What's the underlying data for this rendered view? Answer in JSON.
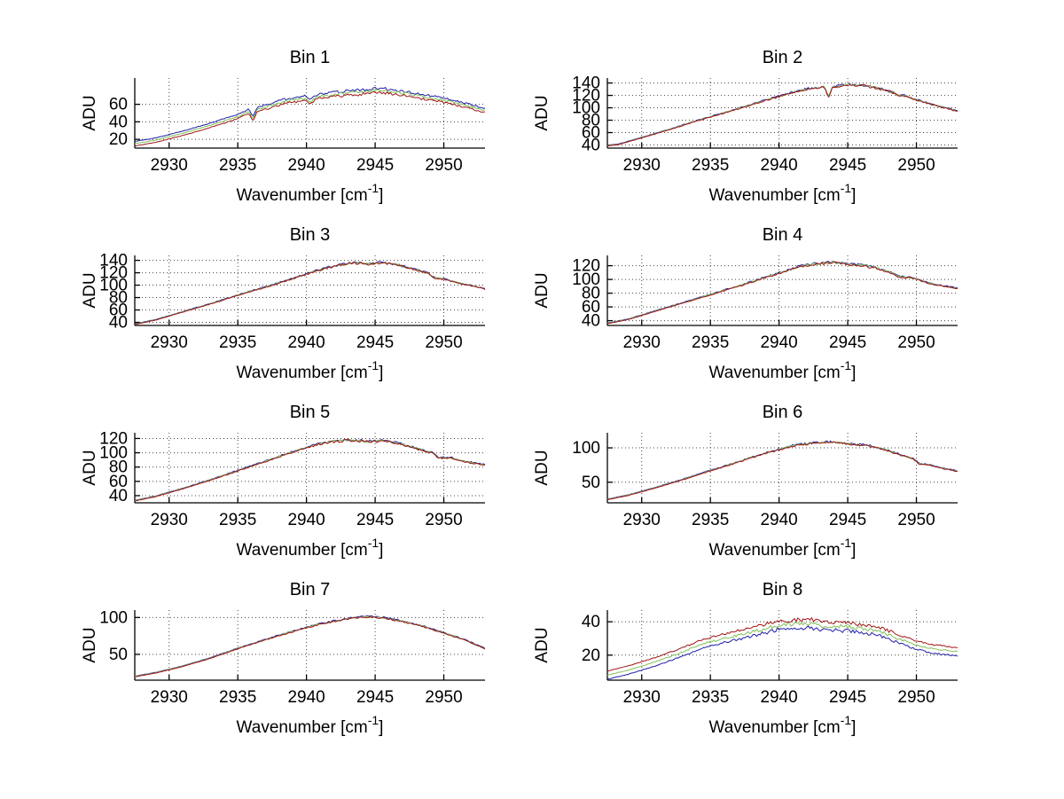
{
  "figure": {
    "background": "#ffffff"
  },
  "chart_data": [
    {
      "type": "line",
      "title": "Bin 1",
      "xlabel_parts": [
        "Wavenumber [cm",
        "-1",
        "]"
      ],
      "ylabel": "ADU",
      "xlim": [
        2927.5,
        2953
      ],
      "ylim": [
        10,
        90
      ],
      "xticks": [
        2930,
        2935,
        2940,
        2945,
        2950
      ],
      "yticks": [
        20,
        40,
        60
      ],
      "grid": true,
      "noise_amp": 1.8,
      "anchors": [
        [
          2927.5,
          15
        ],
        [
          2929,
          19
        ],
        [
          2931,
          27
        ],
        [
          2933,
          36
        ],
        [
          2935,
          46
        ],
        [
          2935.8,
          52
        ],
        [
          2936.1,
          43
        ],
        [
          2936.4,
          54
        ],
        [
          2937.5,
          59
        ],
        [
          2938.5,
          64
        ],
        [
          2940,
          67
        ],
        [
          2940.3,
          62
        ],
        [
          2940.6,
          68
        ],
        [
          2941.5,
          70
        ],
        [
          2942.5,
          72
        ],
        [
          2944,
          74
        ],
        [
          2945.2,
          76
        ],
        [
          2946.5,
          74
        ],
        [
          2948,
          70
        ],
        [
          2949.5,
          66
        ],
        [
          2950.5,
          63
        ],
        [
          2951.5,
          59
        ],
        [
          2953,
          53
        ]
      ],
      "series": [
        {
          "name": "series-blue",
          "color": "#1f1fa8",
          "offset": 2.5
        },
        {
          "name": "series-green",
          "color": "#7fbf56",
          "offset": 0
        },
        {
          "name": "series-red",
          "color": "#a01616",
          "offset": -2.5
        }
      ]
    },
    {
      "type": "line",
      "title": "Bin 2",
      "xlabel_parts": [
        "Wavenumber [cm",
        "-1",
        "]"
      ],
      "ylabel": "ADU",
      "xlim": [
        2927.5,
        2953
      ],
      "ylim": [
        35,
        148
      ],
      "xticks": [
        2930,
        2935,
        2940,
        2945,
        2950
      ],
      "yticks": [
        40,
        60,
        80,
        100,
        120,
        140
      ],
      "grid": true,
      "noise_amp": 2.2,
      "anchors": [
        [
          2927.5,
          39
        ],
        [
          2928.3,
          41
        ],
        [
          2930,
          52
        ],
        [
          2932,
          65
        ],
        [
          2934,
          79
        ],
        [
          2936,
          92
        ],
        [
          2937.5,
          102
        ],
        [
          2939,
          112
        ],
        [
          2940.5,
          122
        ],
        [
          2942,
          130
        ],
        [
          2943.3,
          134
        ],
        [
          2943.6,
          117
        ],
        [
          2943.9,
          133
        ],
        [
          2945,
          137
        ],
        [
          2946.3,
          136
        ],
        [
          2947.5,
          130
        ],
        [
          2948.4,
          124
        ],
        [
          2948.7,
          119
        ],
        [
          2949,
          121
        ],
        [
          2950,
          113
        ],
        [
          2951.5,
          103
        ],
        [
          2953,
          95
        ]
      ],
      "series": [
        {
          "name": "series-blue",
          "color": "#1f1fa8",
          "offset": 0.5
        },
        {
          "name": "series-green",
          "color": "#7fbf56",
          "offset": 0
        },
        {
          "name": "series-red",
          "color": "#a01616",
          "offset": -0.5
        }
      ]
    },
    {
      "type": "line",
      "title": "Bin 3",
      "xlabel_parts": [
        "Wavenumber [cm",
        "-1",
        "]"
      ],
      "ylabel": "ADU",
      "xlim": [
        2927.5,
        2953
      ],
      "ylim": [
        35,
        148
      ],
      "xticks": [
        2930,
        2935,
        2940,
        2945,
        2950
      ],
      "yticks": [
        40,
        60,
        80,
        100,
        120,
        140
      ],
      "grid": true,
      "noise_amp": 2.0,
      "anchors": [
        [
          2927.5,
          37
        ],
        [
          2929,
          44
        ],
        [
          2931,
          57
        ],
        [
          2933,
          70
        ],
        [
          2935,
          84
        ],
        [
          2937,
          97
        ],
        [
          2938.5,
          107
        ],
        [
          2940,
          118
        ],
        [
          2941.5,
          128
        ],
        [
          2942.5,
          133
        ],
        [
          2943.5,
          136
        ],
        [
          2944.5,
          134
        ],
        [
          2945.5,
          137
        ],
        [
          2946.5,
          133
        ],
        [
          2947.5,
          128
        ],
        [
          2948.8,
          120
        ],
        [
          2949.3,
          112
        ],
        [
          2950,
          110
        ],
        [
          2951,
          104
        ],
        [
          2953,
          94
        ]
      ],
      "series": [
        {
          "name": "series-blue",
          "color": "#1f1fa8",
          "offset": 0.5
        },
        {
          "name": "series-green",
          "color": "#7fbf56",
          "offset": 0
        },
        {
          "name": "series-red",
          "color": "#a01616",
          "offset": -0.5
        }
      ]
    },
    {
      "type": "line",
      "title": "Bin 4",
      "xlabel_parts": [
        "Wavenumber [cm",
        "-1",
        "]"
      ],
      "ylabel": "ADU",
      "xlim": [
        2927.5,
        2953
      ],
      "ylim": [
        33,
        135
      ],
      "xticks": [
        2930,
        2935,
        2940,
        2945,
        2950
      ],
      "yticks": [
        40,
        60,
        80,
        100,
        120
      ],
      "grid": true,
      "noise_amp": 2.0,
      "anchors": [
        [
          2927.5,
          36
        ],
        [
          2929,
          42
        ],
        [
          2931,
          54
        ],
        [
          2933,
          66
        ],
        [
          2935,
          78
        ],
        [
          2937,
          90
        ],
        [
          2939,
          103
        ],
        [
          2940.5,
          112
        ],
        [
          2941.5,
          119
        ],
        [
          2942.5,
          122
        ],
        [
          2944,
          125
        ],
        [
          2945,
          122
        ],
        [
          2946,
          121
        ],
        [
          2947,
          117
        ],
        [
          2948,
          111
        ],
        [
          2948.7,
          104
        ],
        [
          2949.5,
          103
        ],
        [
          2950.5,
          97
        ],
        [
          2951.5,
          92
        ],
        [
          2953,
          87
        ]
      ],
      "series": [
        {
          "name": "series-blue",
          "color": "#1f1fa8",
          "offset": 0.5
        },
        {
          "name": "series-green",
          "color": "#7fbf56",
          "offset": 0
        },
        {
          "name": "series-red",
          "color": "#a01616",
          "offset": -0.5
        }
      ]
    },
    {
      "type": "line",
      "title": "Bin 5",
      "xlabel_parts": [
        "Wavenumber [cm",
        "-1",
        "]"
      ],
      "ylabel": "ADU",
      "xlim": [
        2927.5,
        2953
      ],
      "ylim": [
        30,
        128
      ],
      "xticks": [
        2930,
        2935,
        2940,
        2945,
        2950
      ],
      "yticks": [
        40,
        60,
        80,
        100,
        120
      ],
      "grid": true,
      "noise_amp": 1.8,
      "anchors": [
        [
          2927.5,
          33
        ],
        [
          2929,
          39
        ],
        [
          2931,
          50
        ],
        [
          2933,
          62
        ],
        [
          2935,
          75
        ],
        [
          2937,
          88
        ],
        [
          2938.5,
          98
        ],
        [
          2940,
          107
        ],
        [
          2941,
          113
        ],
        [
          2942,
          116
        ],
        [
          2943,
          118
        ],
        [
          2944.5,
          116
        ],
        [
          2945.8,
          117
        ],
        [
          2947,
          112
        ],
        [
          2948,
          106
        ],
        [
          2949.3,
          99
        ],
        [
          2949.6,
          93
        ],
        [
          2950.5,
          93
        ],
        [
          2951.5,
          88
        ],
        [
          2953,
          83
        ]
      ],
      "series": [
        {
          "name": "series-blue",
          "color": "#1f1fa8",
          "offset": 0.5
        },
        {
          "name": "series-green",
          "color": "#7fbf56",
          "offset": 0
        },
        {
          "name": "series-red",
          "color": "#a01616",
          "offset": -0.5
        }
      ]
    },
    {
      "type": "line",
      "title": "Bin 6",
      "xlabel_parts": [
        "Wavenumber [cm",
        "-1",
        "]"
      ],
      "ylabel": "ADU",
      "xlim": [
        2927.5,
        2953
      ],
      "ylim": [
        20,
        122
      ],
      "xticks": [
        2930,
        2935,
        2940,
        2945,
        2950
      ],
      "yticks": [
        50,
        100
      ],
      "grid": true,
      "noise_amp": 1.6,
      "anchors": [
        [
          2927.5,
          25
        ],
        [
          2929,
          31
        ],
        [
          2931,
          42
        ],
        [
          2933,
          54
        ],
        [
          2935,
          67
        ],
        [
          2936.5,
          76
        ],
        [
          2938,
          86
        ],
        [
          2939.5,
          95
        ],
        [
          2941,
          103
        ],
        [
          2942.5,
          107
        ],
        [
          2943.5,
          109
        ],
        [
          2944.5,
          107
        ],
        [
          2945.5,
          105
        ],
        [
          2946.5,
          103
        ],
        [
          2947.5,
          99
        ],
        [
          2948.5,
          92
        ],
        [
          2949.8,
          84
        ],
        [
          2950.2,
          77
        ],
        [
          2951,
          75
        ],
        [
          2952,
          70
        ],
        [
          2953,
          66
        ]
      ],
      "series": [
        {
          "name": "series-blue",
          "color": "#1f1fa8",
          "offset": 0.5
        },
        {
          "name": "series-green",
          "color": "#7fbf56",
          "offset": 0
        },
        {
          "name": "series-red",
          "color": "#a01616",
          "offset": -0.5
        }
      ]
    },
    {
      "type": "line",
      "title": "Bin 7",
      "xlabel_parts": [
        "Wavenumber [cm",
        "-1",
        "]"
      ],
      "ylabel": "ADU",
      "xlim": [
        2927.5,
        2953
      ],
      "ylim": [
        15,
        110
      ],
      "xticks": [
        2930,
        2935,
        2940,
        2945,
        2950
      ],
      "yticks": [
        50,
        100
      ],
      "grid": true,
      "noise_amp": 1.2,
      "anchors": [
        [
          2927.5,
          20
        ],
        [
          2929,
          25
        ],
        [
          2931,
          34
        ],
        [
          2933,
          45
        ],
        [
          2935,
          58
        ],
        [
          2937,
          70
        ],
        [
          2939,
          81
        ],
        [
          2940.5,
          89
        ],
        [
          2942,
          95
        ],
        [
          2943.5,
          100
        ],
        [
          2944.5,
          101
        ],
        [
          2945.5,
          100
        ],
        [
          2947,
          95
        ],
        [
          2948.5,
          88
        ],
        [
          2950,
          79
        ],
        [
          2951.5,
          70
        ],
        [
          2953,
          58
        ]
      ],
      "series": [
        {
          "name": "series-blue",
          "color": "#1f1fa8",
          "offset": 0.5
        },
        {
          "name": "series-green",
          "color": "#7fbf56",
          "offset": 0
        },
        {
          "name": "series-red",
          "color": "#a01616",
          "offset": -0.5
        }
      ]
    },
    {
      "type": "line",
      "title": "Bin 8",
      "xlabel_parts": [
        "Wavenumber [cm",
        "-1",
        "]"
      ],
      "ylabel": "ADU",
      "xlim": [
        2927.5,
        2953
      ],
      "ylim": [
        5,
        47
      ],
      "xticks": [
        2930,
        2935,
        2940,
        2945,
        2950
      ],
      "yticks": [
        20,
        40
      ],
      "grid": true,
      "noise_amp": 1.3,
      "anchors": [
        [
          2927.5,
          8
        ],
        [
          2929,
          11
        ],
        [
          2931,
          16
        ],
        [
          2933,
          22
        ],
        [
          2934.5,
          27
        ],
        [
          2936,
          30
        ],
        [
          2937.5,
          33
        ],
        [
          2939,
          36
        ],
        [
          2940,
          38
        ],
        [
          2941,
          38.5
        ],
        [
          2942,
          39
        ],
        [
          2943,
          38
        ],
        [
          2944,
          37.5
        ],
        [
          2945,
          37
        ],
        [
          2946,
          36
        ],
        [
          2947,
          35
        ],
        [
          2948,
          32
        ],
        [
          2949,
          29
        ],
        [
          2950,
          26
        ],
        [
          2951,
          24
        ],
        [
          2952,
          23
        ],
        [
          2953,
          22
        ]
      ],
      "series": [
        {
          "name": "series-blue",
          "color": "#1f1fa8",
          "offset": -2.5
        },
        {
          "name": "series-green",
          "color": "#7fbf56",
          "offset": 0
        },
        {
          "name": "series-red",
          "color": "#a01616",
          "offset": 2.5
        }
      ]
    }
  ]
}
